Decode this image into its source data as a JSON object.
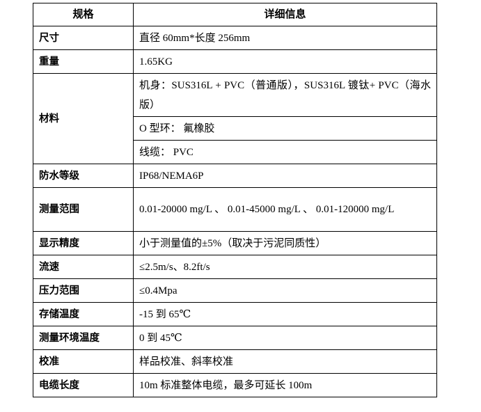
{
  "header": {
    "col1": "规格",
    "col2": "详细信息"
  },
  "rows": {
    "size": {
      "label": "尺寸",
      "value": "直径 60mm*长度  256mm"
    },
    "weight": {
      "label": "重量",
      "value": "1.65KG"
    },
    "material": {
      "label": "材料",
      "body": "机身：SUS316L + PVC（普通版），SUS316L 镀钛+ PVC（海水版）",
      "oring": "O 型环：  氟橡胶",
      "cable": "线缆：  PVC"
    },
    "waterproof": {
      "label": "防水等级",
      "value": "IP68/NEMA6P"
    },
    "range": {
      "label": "测量范围",
      "value": "0.01-20000  mg/L 、 0.01-45000  mg/L  、 0.01-120000 mg/L"
    },
    "accuracy": {
      "label": "显示精度",
      "value": "小于测量值的±5%（取决于污泥同质性）"
    },
    "flow": {
      "label": "流速",
      "value": "≤2.5m/s、8.2ft/s"
    },
    "pressure": {
      "label": "压力范围",
      "value": "≤0.4Mpa"
    },
    "storage_temp": {
      "label": "存储温度",
      "value": "-15 到 65℃"
    },
    "ambient_temp": {
      "label": "测量环境温度",
      "value": "0 到 45℃"
    },
    "calibration": {
      "label": "校准",
      "value": "样品校准、斜率校准"
    },
    "cable_length": {
      "label": "电缆长度",
      "value": "10m 标准整体电缆，最多可延长 100m"
    }
  }
}
